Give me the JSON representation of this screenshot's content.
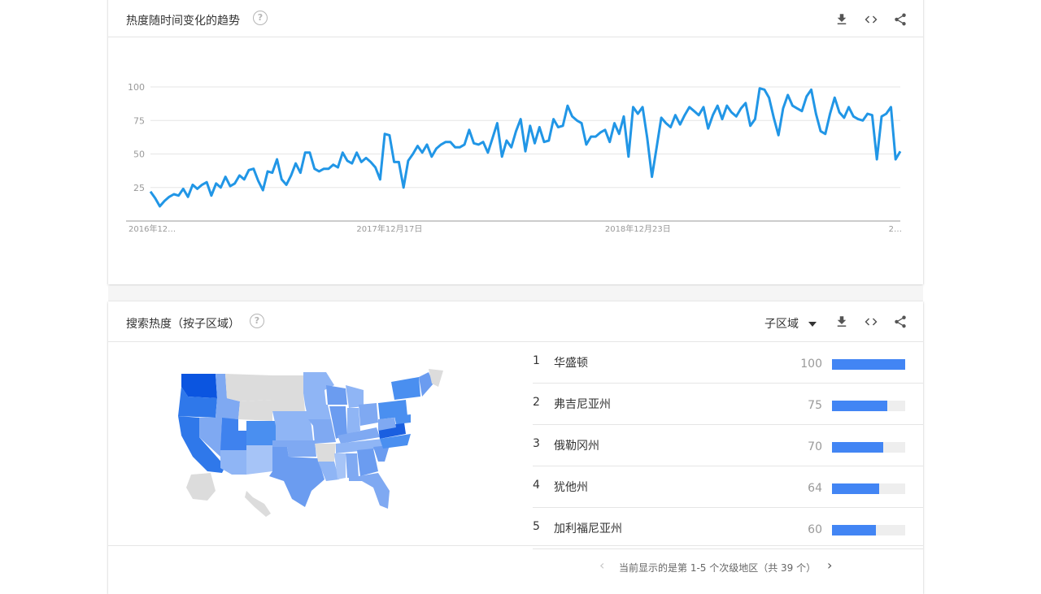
{
  "trend": {
    "title": "热度随时间变化的趋势",
    "help_symbol": "?",
    "icons": {
      "download": "download-icon",
      "embed": "code-icon",
      "share": "share-icon"
    },
    "chart_data": {
      "type": "line",
      "title": "",
      "xlabel": "",
      "ylabel": "",
      "ylim": [
        0,
        100
      ],
      "yticks": [
        25,
        50,
        75,
        100
      ],
      "x_tick_labels": [
        "2016年12…",
        "2017年12月17日",
        "2018年12月23日",
        "2…"
      ],
      "x_tick_index": [
        0,
        51,
        104,
        157
      ],
      "grid": true,
      "line_color": "#2196e6",
      "series": [
        {
          "values": [
            22,
            17,
            11,
            15,
            18,
            20,
            19,
            24,
            18,
            27,
            24,
            27,
            29,
            19,
            28,
            25,
            33,
            26,
            28,
            34,
            31,
            38,
            39,
            30,
            23,
            37,
            36,
            46,
            31,
            27,
            34,
            43,
            36,
            51,
            51,
            39,
            37,
            39,
            39,
            42,
            40,
            51,
            45,
            43,
            51,
            44,
            47,
            44,
            40,
            31,
            65,
            64,
            44,
            44,
            25,
            45,
            50,
            56,
            51,
            57,
            48,
            54,
            57,
            59,
            59,
            55,
            55,
            57,
            68,
            58,
            57,
            59,
            51,
            62,
            73,
            48,
            60,
            55,
            67,
            76,
            52,
            71,
            58,
            70,
            59,
            60,
            76,
            70,
            71,
            86,
            78,
            75,
            73,
            57,
            63,
            63,
            66,
            68,
            59,
            73,
            65,
            78,
            48,
            85,
            80,
            85,
            62,
            33,
            55,
            77,
            73,
            70,
            79,
            72,
            79,
            85,
            82,
            79,
            85,
            69,
            79,
            86,
            76,
            86,
            81,
            78,
            84,
            88,
            71,
            76,
            99,
            98,
            92,
            77,
            64,
            84,
            94,
            86,
            84,
            82,
            93,
            98,
            80,
            67,
            65,
            80,
            92,
            81,
            77,
            85,
            78,
            76,
            75,
            80,
            79,
            46,
            78,
            80,
            85,
            46,
            52
          ]
        }
      ]
    }
  },
  "region": {
    "title": "搜索热度（按子区域）",
    "help_symbol": "?",
    "selector_label": "子区域",
    "icons": {
      "download": "download-icon",
      "embed": "code-icon",
      "share": "share-icon"
    },
    "rankings": [
      {
        "rank": "1",
        "name": "华盛顿",
        "value": "100",
        "score": 100
      },
      {
        "rank": "2",
        "name": "弗吉尼亚州",
        "value": "75",
        "score": 75
      },
      {
        "rank": "3",
        "name": "俄勒冈州",
        "value": "70",
        "score": 70
      },
      {
        "rank": "4",
        "name": "犹他州",
        "value": "64",
        "score": 64
      },
      {
        "rank": "5",
        "name": "加利福尼亚州",
        "value": "60",
        "score": 60
      }
    ],
    "pager": {
      "text": "当前显示的是第 1-5 个次级地区（共 39 个）",
      "prev": "‹",
      "next": "›"
    },
    "colors": {
      "bar": "#4285f4",
      "bar_bg": "#eeeeee",
      "map_dark": "#1a5fe0",
      "map_mid": "#4a8ff0",
      "map_light": "#8fb8f5",
      "map_none": "#d9d9d9"
    }
  }
}
